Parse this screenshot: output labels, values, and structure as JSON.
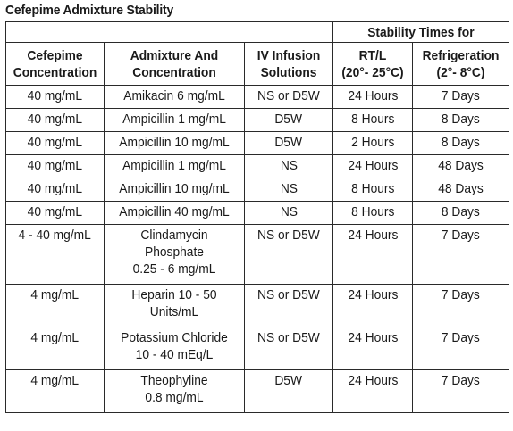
{
  "title": "Cefepime Admixture Stability",
  "group_header": "Stability Times for",
  "columns": [
    [
      "Cefepime",
      "Concentration"
    ],
    [
      "Admixture And",
      "Concentration"
    ],
    [
      "IV Infusion",
      "Solutions"
    ],
    [
      "RT/L",
      "(20°- 25°C)"
    ],
    [
      "Refrigeration",
      "(2°- 8°C)"
    ]
  ],
  "rows": [
    {
      "conc": "40 mg/mL",
      "admix": [
        "Amikacin 6 mg/mL"
      ],
      "solution": "NS or D5W",
      "rt": "24 Hours",
      "refrig": "7  Days"
    },
    {
      "conc": "40 mg/mL",
      "admix": [
        "Ampicillin 1 mg/mL"
      ],
      "solution": "D5W",
      "rt": "8  Hours",
      "refrig": "8  Days"
    },
    {
      "conc": "40 mg/mL",
      "admix": [
        "Ampicillin 10 mg/mL"
      ],
      "solution": "D5W",
      "rt": "2  Hours",
      "refrig": "8  Days"
    },
    {
      "conc": "40 mg/mL",
      "admix": [
        "Ampicillin 1 mg/mL"
      ],
      "solution": "NS",
      "rt": "24 Hours",
      "refrig": "48  Days"
    },
    {
      "conc": "40 mg/mL",
      "admix": [
        "Ampicillin 10 mg/mL"
      ],
      "solution": "NS",
      "rt": "8  Hours",
      "refrig": "48  Days"
    },
    {
      "conc": "40 mg/mL",
      "admix": [
        "Ampicillin 40 mg/mL"
      ],
      "solution": "NS",
      "rt": "8  Hours",
      "refrig": "8  Days"
    },
    {
      "conc": "4 - 40 mg/mL",
      "admix": [
        "Clindamycin",
        "Phosphate",
        "0.25 - 6 mg/mL"
      ],
      "solution": "NS or D5W",
      "rt": "24 Hours",
      "refrig": "7  Days"
    },
    {
      "conc": "4 mg/mL",
      "admix": [
        "Heparin 10 - 50",
        "Units/mL"
      ],
      "solution": "NS or D5W",
      "rt": "24 Hours",
      "refrig": "7  Days"
    },
    {
      "conc": "4 mg/mL",
      "admix": [
        "Potassium Chloride",
        "10 - 40 mEq/L"
      ],
      "solution": "NS or D5W",
      "rt": "24 Hours",
      "refrig": "7  Days"
    },
    {
      "conc": "4 mg/mL",
      "admix": [
        "Theophyline",
        "0.8 mg/mL"
      ],
      "solution": "D5W",
      "rt": "24 Hours",
      "refrig": "7  Days"
    }
  ]
}
